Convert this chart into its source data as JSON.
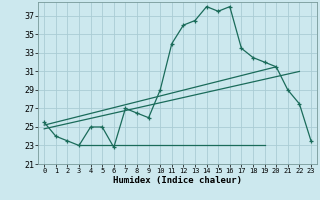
{
  "xlabel": "Humidex (Indice chaleur)",
  "bg_color": "#cce8ee",
  "grid_color": "#aaccd4",
  "line_color": "#1a6b5a",
  "xlim": [
    -0.5,
    23.5
  ],
  "ylim": [
    21,
    38.5
  ],
  "xticks": [
    0,
    1,
    2,
    3,
    4,
    5,
    6,
    7,
    8,
    9,
    10,
    11,
    12,
    13,
    14,
    15,
    16,
    17,
    18,
    19,
    20,
    21,
    22,
    23
  ],
  "yticks": [
    21,
    23,
    25,
    27,
    29,
    31,
    33,
    35,
    37
  ],
  "curve1_x": [
    0,
    1,
    2,
    3,
    4,
    5,
    6,
    7,
    8,
    9,
    10,
    11,
    12,
    13,
    14,
    15,
    16,
    17,
    18,
    19,
    20,
    21,
    22,
    23
  ],
  "curve1_y": [
    25.5,
    24.0,
    23.5,
    23.0,
    25.0,
    25.0,
    22.8,
    27.0,
    26.5,
    26.0,
    29.0,
    34.0,
    36.0,
    36.5,
    38.0,
    37.5,
    38.0,
    33.5,
    32.5,
    32.0,
    31.5,
    29.0,
    27.5,
    23.5
  ],
  "line2_x": [
    0,
    20
  ],
  "line2_y": [
    25.2,
    31.5
  ],
  "line3_x": [
    0,
    22
  ],
  "line3_y": [
    24.8,
    31.0
  ],
  "line4_x": [
    3,
    19
  ],
  "line4_y": [
    23.0,
    23.0
  ]
}
